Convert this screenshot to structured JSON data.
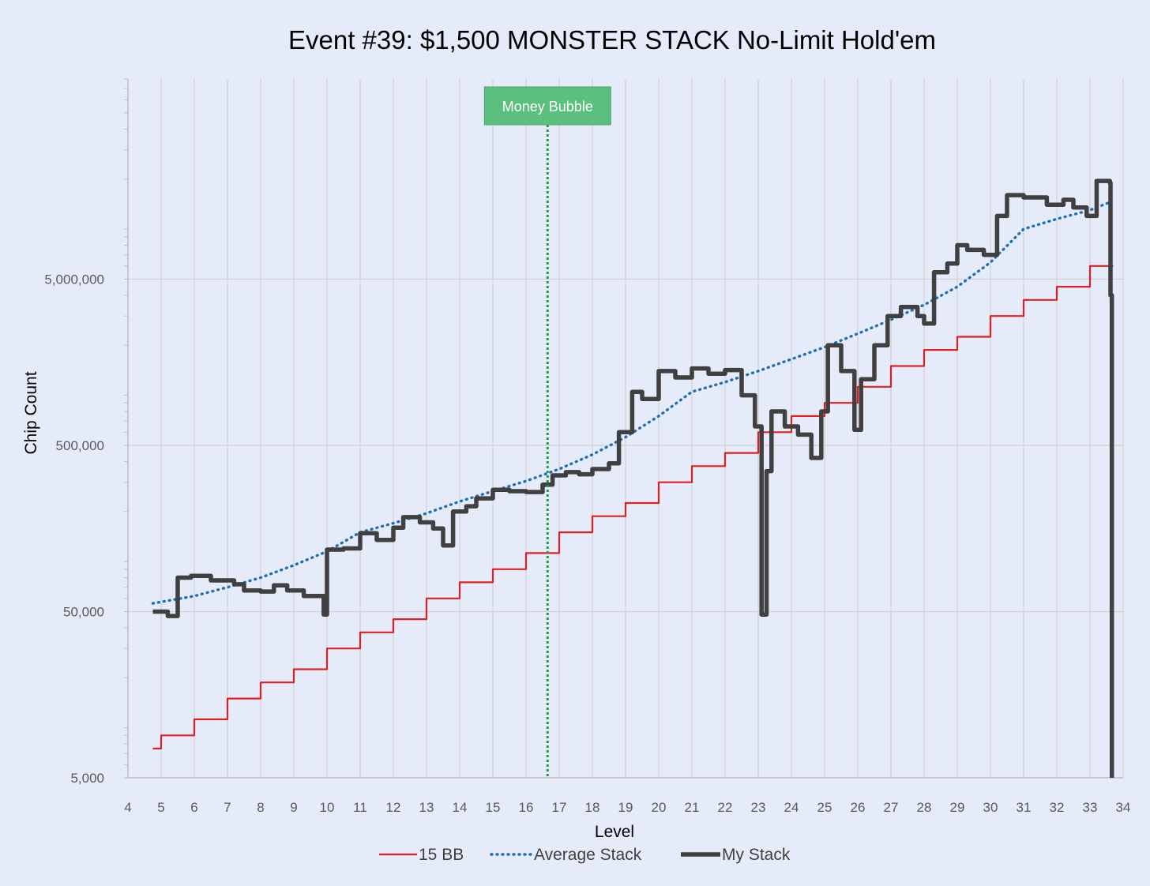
{
  "chart_data": {
    "type": "line",
    "title": "Event #39: $1,500 MONSTER STACK No-Limit Hold'em",
    "xlabel": "Level",
    "ylabel": "Chip Count",
    "xlim": [
      4,
      34
    ],
    "ylim": [
      5000,
      80000000
    ],
    "y_scale": "log",
    "x_ticks": [
      "4",
      "5",
      "6",
      "7",
      "8",
      "9",
      "10",
      "11",
      "12",
      "13",
      "14",
      "15",
      "16",
      "17",
      "18",
      "19",
      "20",
      "21",
      "22",
      "23",
      "24",
      "25",
      "26",
      "27",
      "28",
      "29",
      "30",
      "31",
      "32",
      "33",
      "34"
    ],
    "y_ticks": [
      {
        "value": 5000,
        "label": "5,000"
      },
      {
        "value": 50000,
        "label": "50,000"
      },
      {
        "value": 500000,
        "label": "500,000"
      },
      {
        "value": 5000000,
        "label": "5,000,000"
      }
    ],
    "grid": true,
    "legend_position": "bottom",
    "annotation": {
      "label": "Money Bubble",
      "x": 16.65,
      "color": "#5bbf7e",
      "line_color": "#1f9e4a"
    },
    "series": [
      {
        "name": "15 BB",
        "style": "step",
        "color": "#e02020",
        "points": [
          [
            4.75,
            7500
          ],
          [
            5,
            9000
          ],
          [
            6,
            11250
          ],
          [
            7,
            15000
          ],
          [
            8,
            18750
          ],
          [
            9,
            22500
          ],
          [
            10,
            30000
          ],
          [
            11,
            37500
          ],
          [
            12,
            45000
          ],
          [
            13,
            60000
          ],
          [
            14,
            75000
          ],
          [
            15,
            90000
          ],
          [
            16,
            112500
          ],
          [
            17,
            150000
          ],
          [
            18,
            187500
          ],
          [
            19,
            225000
          ],
          [
            20,
            300000
          ],
          [
            21,
            375000
          ],
          [
            22,
            450000
          ],
          [
            23,
            600000
          ],
          [
            24,
            750000
          ],
          [
            25,
            900000
          ],
          [
            26,
            1125000
          ],
          [
            27,
            1500000
          ],
          [
            28,
            1875000
          ],
          [
            29,
            2250000
          ],
          [
            30,
            3000000
          ],
          [
            31,
            3750000
          ],
          [
            32,
            4500000
          ],
          [
            33,
            6000000
          ],
          [
            33.7,
            6000000
          ]
        ]
      },
      {
        "name": "Average Stack",
        "style": "dotted",
        "color": "#1f6fb4",
        "points": [
          [
            4.75,
            56000
          ],
          [
            6,
            62000
          ],
          [
            7,
            70000
          ],
          [
            8,
            80000
          ],
          [
            9,
            95000
          ],
          [
            10,
            115000
          ],
          [
            11,
            150000
          ],
          [
            12,
            170000
          ],
          [
            13,
            195000
          ],
          [
            14,
            230000
          ],
          [
            15,
            265000
          ],
          [
            16,
            305000
          ],
          [
            17,
            360000
          ],
          [
            18,
            440000
          ],
          [
            19,
            560000
          ],
          [
            20,
            750000
          ],
          [
            21,
            1050000
          ],
          [
            22,
            1200000
          ],
          [
            23,
            1400000
          ],
          [
            24,
            1650000
          ],
          [
            25,
            1950000
          ],
          [
            26,
            2350000
          ],
          [
            27,
            2850000
          ],
          [
            28,
            3500000
          ],
          [
            29,
            4500000
          ],
          [
            30,
            6300000
          ],
          [
            31,
            10000000
          ],
          [
            32,
            11500000
          ],
          [
            33,
            13000000
          ],
          [
            33.6,
            14500000
          ]
        ]
      },
      {
        "name": "My Stack",
        "style": "step",
        "color": "#404040",
        "points": [
          [
            4.75,
            50000
          ],
          [
            5.2,
            47000
          ],
          [
            5.5,
            80000
          ],
          [
            5.9,
            82000
          ],
          [
            6.5,
            77000
          ],
          [
            7.2,
            73000
          ],
          [
            7.5,
            67000
          ],
          [
            8,
            66000
          ],
          [
            8.4,
            72000
          ],
          [
            8.8,
            67000
          ],
          [
            9.3,
            62000
          ],
          [
            9.9,
            48000
          ],
          [
            10,
            118000
          ],
          [
            10.5,
            120000
          ],
          [
            11,
            148000
          ],
          [
            11.5,
            135000
          ],
          [
            12,
            160000
          ],
          [
            12.3,
            185000
          ],
          [
            12.8,
            172000
          ],
          [
            13.2,
            158000
          ],
          [
            13.5,
            125000
          ],
          [
            13.8,
            200000
          ],
          [
            14.2,
            215000
          ],
          [
            14.5,
            240000
          ],
          [
            15,
            270000
          ],
          [
            15.5,
            265000
          ],
          [
            16,
            262000
          ],
          [
            16.5,
            290000
          ],
          [
            16.8,
            330000
          ],
          [
            17.2,
            345000
          ],
          [
            17.6,
            335000
          ],
          [
            18,
            360000
          ],
          [
            18.5,
            390000
          ],
          [
            18.8,
            600000
          ],
          [
            19.2,
            1050000
          ],
          [
            19.5,
            950000
          ],
          [
            20,
            1400000
          ],
          [
            20.5,
            1280000
          ],
          [
            21,
            1450000
          ],
          [
            21.5,
            1350000
          ],
          [
            22,
            1420000
          ],
          [
            22.5,
            1000000
          ],
          [
            22.9,
            650000
          ],
          [
            23.1,
            48000
          ],
          [
            23.25,
            350000
          ],
          [
            23.4,
            800000
          ],
          [
            23.8,
            650000
          ],
          [
            24.2,
            580000
          ],
          [
            24.6,
            420000
          ],
          [
            24.9,
            800000
          ],
          [
            25.1,
            2000000
          ],
          [
            25.5,
            1400000
          ],
          [
            25.9,
            620000
          ],
          [
            26.1,
            1250000
          ],
          [
            26.5,
            2000000
          ],
          [
            26.9,
            3000000
          ],
          [
            27.3,
            3400000
          ],
          [
            27.8,
            3000000
          ],
          [
            28,
            2700000
          ],
          [
            28.3,
            5500000
          ],
          [
            28.7,
            6200000
          ],
          [
            29,
            8000000
          ],
          [
            29.3,
            7500000
          ],
          [
            29.8,
            7000000
          ],
          [
            30.2,
            12000000
          ],
          [
            30.5,
            16000000
          ],
          [
            31,
            15500000
          ],
          [
            31.7,
            14000000
          ],
          [
            32.2,
            15000000
          ],
          [
            32.5,
            13500000
          ],
          [
            32.9,
            12000000
          ],
          [
            33.2,
            19500000
          ],
          [
            33.6,
            19000000
          ],
          [
            33.62,
            4000000
          ],
          [
            33.66,
            5000
          ]
        ]
      }
    ]
  }
}
